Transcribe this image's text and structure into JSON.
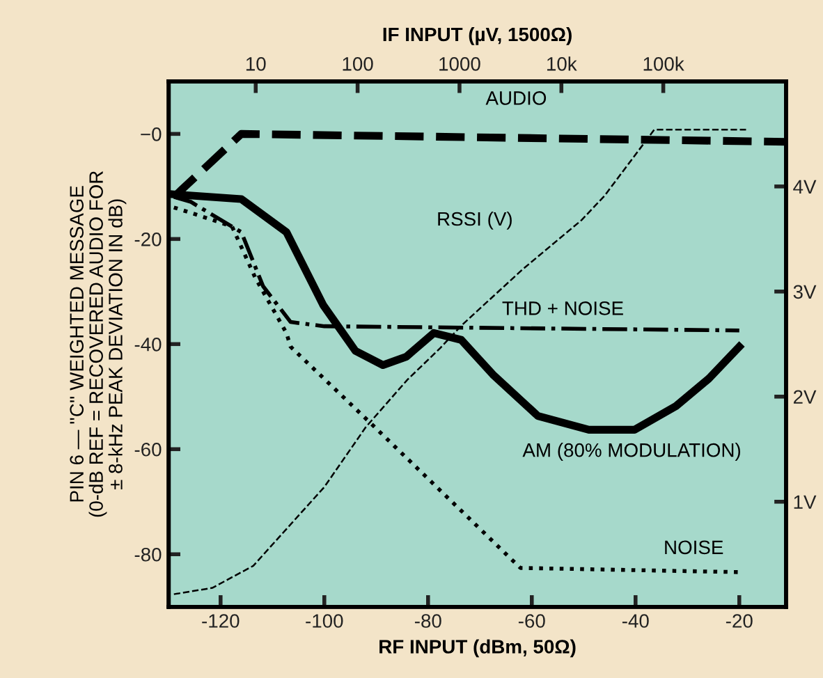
{
  "chart_data": {
    "type": "line",
    "x2label": "IF INPUT (µV, 1500Ω)",
    "xlabel": "RF INPUT (dBm, 50Ω)",
    "ylabel": "PIN 6 — ''C'' WEIGHTED MESSAGE\n(0-dB REF = RECOVERED AUDIO FOR\n± 8-kHz PEAK DEVIATION IN dB)",
    "xlim": [
      -130,
      -11
    ],
    "xticks": [
      -120,
      -100,
      -80,
      -60,
      -40,
      -20
    ],
    "ylim": [
      -90,
      10
    ],
    "yticks": [
      {
        "value": 0,
        "label": "−0"
      },
      -20,
      -40,
      -60,
      -80
    ],
    "y2lim": [
      0,
      5
    ],
    "y2ticks": [
      {
        "value": 1,
        "label": "1V"
      },
      {
        "value": 2,
        "label": "2V"
      },
      {
        "value": 3,
        "label": "3V"
      },
      {
        "value": 4,
        "label": "4V"
      }
    ],
    "x2lim": [
      1.4,
      1600000
    ],
    "x2ticks": [
      10,
      100,
      1000,
      {
        "value": 10000,
        "label": "10k"
      },
      {
        "value": 100000,
        "label": "100k"
      }
    ],
    "log": "x2",
    "grid": false,
    "legend": false,
    "marker": "none",
    "series": [
      {
        "name": "AUDIO",
        "color": "#000000",
        "line_style": "dashed",
        "x": [
          -129,
          -116,
          -11
        ],
        "values": [
          -12,
          0,
          -1.5
        ]
      },
      {
        "name": "RSSI (V)",
        "color": "#000000",
        "line_style": "dashed",
        "axis": "y2",
        "x": [
          -129,
          -121.6,
          -113.7,
          -100,
          -92,
          -84,
          -77.7,
          -73.5,
          -61.8,
          -50.4,
          -46,
          -36.4,
          -18.7
        ],
        "values": [
          0.12,
          0.18,
          0.39,
          1.14,
          1.71,
          2.16,
          2.46,
          2.68,
          3.21,
          3.68,
          3.91,
          4.54,
          4.54
        ]
      },
      {
        "name": "THD + NOISE",
        "color": "#000000",
        "line_style": "dashdot",
        "x": [
          -129,
          -125.8,
          -116,
          -111.8,
          -106.5,
          -100,
          -20
        ],
        "values": [
          -12,
          -12.9,
          -18.7,
          -29,
          -35.8,
          -36.6,
          -37.4
        ]
      },
      {
        "name": "AM (80% MODULATION)",
        "color": "#000000",
        "line_style": "solid",
        "x": [
          -129,
          -116,
          -107.3,
          -100.2,
          -94,
          -88.7,
          -84.2,
          -78.9,
          -73.6,
          -67.5,
          -58.8,
          -49,
          -40.2,
          -32.2,
          -25.9,
          -20
        ],
        "values": [
          -11.5,
          -12.4,
          -18.7,
          -32.6,
          -41.3,
          -44,
          -42.4,
          -37.9,
          -39.2,
          -45.8,
          -53.7,
          -56.3,
          -56.3,
          -51.8,
          -46.6,
          -40.5
        ]
      },
      {
        "name": "NOISE",
        "color": "#000000",
        "line_style": "dotted",
        "x": [
          -129,
          -125.8,
          -117.8,
          -113.3,
          -107.3,
          -106.5,
          -90.6,
          -62.2,
          -20
        ],
        "values": [
          -14,
          -15,
          -17.6,
          -27.4,
          -37.9,
          -40.5,
          -55.5,
          -82.6,
          -83.4
        ]
      }
    ]
  }
}
